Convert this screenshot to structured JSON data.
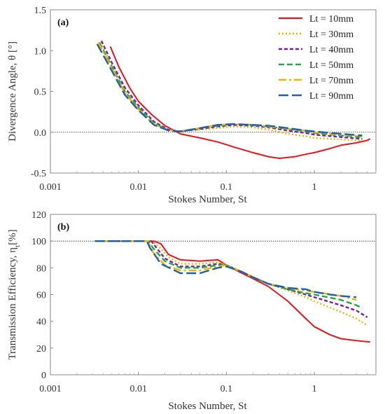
{
  "chart_data": [
    {
      "type": "line",
      "panel_label": "(a)",
      "xlabel": "Stokes Number, St",
      "ylabel": "Divergence Angle, θ [°]",
      "xscale": "log",
      "xlim": [
        0.001,
        5
      ],
      "ylim": [
        -0.5,
        1.5
      ],
      "xticks": [
        0.001,
        0.01,
        0.1,
        1
      ],
      "xtick_labels": [
        "0.001",
        "0.01",
        "0.1",
        "1"
      ],
      "yticks": [
        -0.5,
        0.0,
        0.5,
        1.0,
        1.5
      ],
      "ytick_labels": [
        "-0.5",
        "0.0",
        "0.5",
        "1.0",
        "1.5"
      ],
      "reference_line": 0.0,
      "legend_position": "top-right",
      "series": [
        {
          "name": "Lt = 10mm",
          "color": "#e8141c",
          "dash": "solid",
          "points": [
            [
              0.0048,
              1.05
            ],
            [
              0.006,
              0.8
            ],
            [
              0.008,
              0.54
            ],
            [
              0.01,
              0.38
            ],
            [
              0.014,
              0.22
            ],
            [
              0.02,
              0.08
            ],
            [
              0.03,
              -0.02
            ],
            [
              0.05,
              -0.07
            ],
            [
              0.08,
              -0.12
            ],
            [
              0.12,
              -0.18
            ],
            [
              0.2,
              -0.25
            ],
            [
              0.3,
              -0.3
            ],
            [
              0.4,
              -0.32
            ],
            [
              0.6,
              -0.3
            ],
            [
              0.8,
              -0.27
            ],
            [
              1.0,
              -0.25
            ],
            [
              1.5,
              -0.2
            ],
            [
              2.0,
              -0.16
            ],
            [
              3.0,
              -0.13
            ],
            [
              4.0,
              -0.1
            ],
            [
              4.3,
              -0.08
            ]
          ]
        },
        {
          "name": "Lt = 30mm",
          "color": "#f0b400",
          "dash": "dot",
          "points": [
            [
              0.0037,
              1.1
            ],
            [
              0.005,
              0.82
            ],
            [
              0.007,
              0.52
            ],
            [
              0.01,
              0.3
            ],
            [
              0.015,
              0.12
            ],
            [
              0.022,
              0.03
            ],
            [
              0.03,
              0.01
            ],
            [
              0.05,
              0.03
            ],
            [
              0.08,
              0.05
            ],
            [
              0.12,
              0.07
            ],
            [
              0.2,
              0.06
            ],
            [
              0.3,
              0.03
            ],
            [
              0.5,
              -0.02
            ],
            [
              0.8,
              -0.05
            ],
            [
              1.0,
              -0.07
            ],
            [
              2.0,
              -0.09
            ],
            [
              3.5,
              -0.1
            ]
          ]
        },
        {
          "name": "Lt = 40mm",
          "color": "#7a1fa2",
          "dash": "short-dash",
          "points": [
            [
              0.0038,
              1.12
            ],
            [
              0.005,
              0.85
            ],
            [
              0.007,
              0.55
            ],
            [
              0.01,
              0.33
            ],
            [
              0.015,
              0.13
            ],
            [
              0.022,
              0.03
            ],
            [
              0.03,
              0.01
            ],
            [
              0.05,
              0.04
            ],
            [
              0.08,
              0.07
            ],
            [
              0.12,
              0.09
            ],
            [
              0.2,
              0.08
            ],
            [
              0.3,
              0.06
            ],
            [
              0.5,
              0.02
            ],
            [
              0.8,
              -0.01
            ],
            [
              1.0,
              -0.03
            ],
            [
              2.0,
              -0.06
            ],
            [
              3.5,
              -0.08
            ]
          ]
        },
        {
          "name": "Lt = 50mm",
          "color": "#22a84a",
          "dash": "dash",
          "points": [
            [
              0.0036,
              1.1
            ],
            [
              0.005,
              0.8
            ],
            [
              0.007,
              0.5
            ],
            [
              0.01,
              0.3
            ],
            [
              0.015,
              0.11
            ],
            [
              0.022,
              0.02
            ],
            [
              0.03,
              0.01
            ],
            [
              0.05,
              0.05
            ],
            [
              0.08,
              0.08
            ],
            [
              0.12,
              0.1
            ],
            [
              0.2,
              0.09
            ],
            [
              0.3,
              0.07
            ],
            [
              0.5,
              0.04
            ],
            [
              0.8,
              0.01
            ],
            [
              1.0,
              -0.01
            ],
            [
              2.0,
              -0.04
            ],
            [
              3.5,
              -0.06
            ]
          ]
        },
        {
          "name": "Lt = 70mm",
          "color": "#f0b400",
          "dash": "dash-dot",
          "points": [
            [
              0.0035,
              1.1
            ],
            [
              0.005,
              0.78
            ],
            [
              0.007,
              0.48
            ],
            [
              0.01,
              0.28
            ],
            [
              0.015,
              0.1
            ],
            [
              0.022,
              0.02
            ],
            [
              0.03,
              0.01
            ],
            [
              0.05,
              0.05
            ],
            [
              0.08,
              0.09
            ],
            [
              0.12,
              0.1
            ],
            [
              0.2,
              0.09
            ],
            [
              0.3,
              0.07
            ],
            [
              0.5,
              0.04
            ],
            [
              0.8,
              0.02
            ],
            [
              1.0,
              0.0
            ],
            [
              2.0,
              -0.03
            ],
            [
              3.5,
              -0.05
            ]
          ]
        },
        {
          "name": "Lt = 90mm",
          "color": "#1f5fae",
          "dash": "long-dash",
          "points": [
            [
              0.0034,
              1.08
            ],
            [
              0.005,
              0.75
            ],
            [
              0.007,
              0.46
            ],
            [
              0.01,
              0.27
            ],
            [
              0.015,
              0.09
            ],
            [
              0.022,
              0.02
            ],
            [
              0.03,
              0.01
            ],
            [
              0.05,
              0.05
            ],
            [
              0.08,
              0.09
            ],
            [
              0.12,
              0.1
            ],
            [
              0.2,
              0.09
            ],
            [
              0.3,
              0.08
            ],
            [
              0.5,
              0.05
            ],
            [
              0.8,
              0.02
            ],
            [
              1.0,
              0.01
            ],
            [
              2.0,
              -0.02
            ],
            [
              3.5,
              -0.04
            ]
          ]
        }
      ]
    },
    {
      "type": "line",
      "panel_label": "(b)",
      "xlabel": "Stokes Number, St",
      "ylabel": "Transmission Efficiency, η",
      "ylabel_subscript": "t",
      "ylabel_unit": "[%]",
      "xscale": "log",
      "xlim": [
        0.001,
        5
      ],
      "ylim": [
        0,
        120
      ],
      "xticks": [
        0.001,
        0.01,
        0.1,
        1
      ],
      "xtick_labels": [
        "0.001",
        "0.01",
        "0.1",
        "1"
      ],
      "yticks": [
        0,
        20,
        40,
        60,
        80,
        100,
        120
      ],
      "ytick_labels": [
        "0",
        "20",
        "40",
        "60",
        "80",
        "100",
        "120"
      ],
      "reference_line": 100,
      "series": [
        {
          "name": "Lt = 10mm",
          "color": "#e8141c",
          "dash": "solid",
          "points": [
            [
              0.0032,
              100
            ],
            [
              0.015,
              100
            ],
            [
              0.018,
              98
            ],
            [
              0.022,
              90
            ],
            [
              0.03,
              86
            ],
            [
              0.05,
              85
            ],
            [
              0.08,
              86
            ],
            [
              0.1,
              82
            ],
            [
              0.15,
              76
            ],
            [
              0.2,
              72
            ],
            [
              0.3,
              66
            ],
            [
              0.5,
              55
            ],
            [
              0.8,
              42
            ],
            [
              1.0,
              36
            ],
            [
              1.5,
              30
            ],
            [
              2.0,
              27
            ],
            [
              3.0,
              25.5
            ],
            [
              4.3,
              24.5
            ]
          ]
        },
        {
          "name": "Lt = 30mm",
          "color": "#f0b400",
          "dash": "dot",
          "points": [
            [
              0.0032,
              100
            ],
            [
              0.014,
              100
            ],
            [
              0.017,
              96
            ],
            [
              0.022,
              88
            ],
            [
              0.03,
              83
            ],
            [
              0.05,
              83
            ],
            [
              0.08,
              84
            ],
            [
              0.1,
              82
            ],
            [
              0.15,
              77
            ],
            [
              0.2,
              73
            ],
            [
              0.3,
              68
            ],
            [
              0.5,
              63
            ],
            [
              0.8,
              58
            ],
            [
              1.0,
              55
            ],
            [
              2.0,
              47
            ],
            [
              3.0,
              42
            ],
            [
              4.0,
              37
            ]
          ]
        },
        {
          "name": "Lt = 40mm",
          "color": "#7a1fa2",
          "dash": "short-dash",
          "points": [
            [
              0.0032,
              100
            ],
            [
              0.014,
              100
            ],
            [
              0.016,
              95
            ],
            [
              0.02,
              87
            ],
            [
              0.03,
              81
            ],
            [
              0.05,
              81
            ],
            [
              0.08,
              83
            ],
            [
              0.1,
              82
            ],
            [
              0.15,
              77
            ],
            [
              0.2,
              73
            ],
            [
              0.3,
              68
            ],
            [
              0.5,
              64
            ],
            [
              0.8,
              60
            ],
            [
              1.0,
              58
            ],
            [
              2.0,
              52
            ],
            [
              3.0,
              48
            ],
            [
              4.0,
              43
            ]
          ]
        },
        {
          "name": "Lt = 50mm",
          "color": "#22a84a",
          "dash": "dash",
          "points": [
            [
              0.0032,
              100
            ],
            [
              0.013,
              100
            ],
            [
              0.015,
              94
            ],
            [
              0.02,
              85
            ],
            [
              0.03,
              80
            ],
            [
              0.05,
              80
            ],
            [
              0.08,
              82
            ],
            [
              0.1,
              82
            ],
            [
              0.15,
              77
            ],
            [
              0.2,
              73
            ],
            [
              0.3,
              68
            ],
            [
              0.5,
              64
            ],
            [
              0.8,
              61
            ],
            [
              1.0,
              60
            ],
            [
              2.0,
              56
            ],
            [
              3.0,
              52
            ],
            [
              3.5,
              50
            ]
          ]
        },
        {
          "name": "Lt = 70mm",
          "color": "#f0b400",
          "dash": "dash-dot",
          "points": [
            [
              0.0032,
              100
            ],
            [
              0.013,
              100
            ],
            [
              0.0145,
              92
            ],
            [
              0.02,
              82
            ],
            [
              0.03,
              78
            ],
            [
              0.05,
              78
            ],
            [
              0.08,
              81
            ],
            [
              0.1,
              82
            ],
            [
              0.15,
              77
            ],
            [
              0.2,
              73
            ],
            [
              0.3,
              68
            ],
            [
              0.5,
              65
            ],
            [
              0.8,
              63
            ],
            [
              1.0,
              62
            ],
            [
              2.0,
              59
            ],
            [
              3.0,
              56
            ]
          ]
        },
        {
          "name": "Lt = 90mm",
          "color": "#1f5fae",
          "dash": "long-dash",
          "points": [
            [
              0.0032,
              100
            ],
            [
              0.0125,
              100
            ],
            [
              0.0135,
              95
            ],
            [
              0.018,
              83
            ],
            [
              0.03,
              76
            ],
            [
              0.05,
              76
            ],
            [
              0.08,
              80
            ],
            [
              0.1,
              81
            ],
            [
              0.15,
              77
            ],
            [
              0.2,
              73
            ],
            [
              0.3,
              68
            ],
            [
              0.5,
              65
            ],
            [
              0.8,
              64
            ],
            [
              1.0,
              62
            ],
            [
              1.5,
              60
            ],
            [
              2.0,
              59
            ],
            [
              3.0,
              58
            ]
          ]
        }
      ]
    }
  ]
}
